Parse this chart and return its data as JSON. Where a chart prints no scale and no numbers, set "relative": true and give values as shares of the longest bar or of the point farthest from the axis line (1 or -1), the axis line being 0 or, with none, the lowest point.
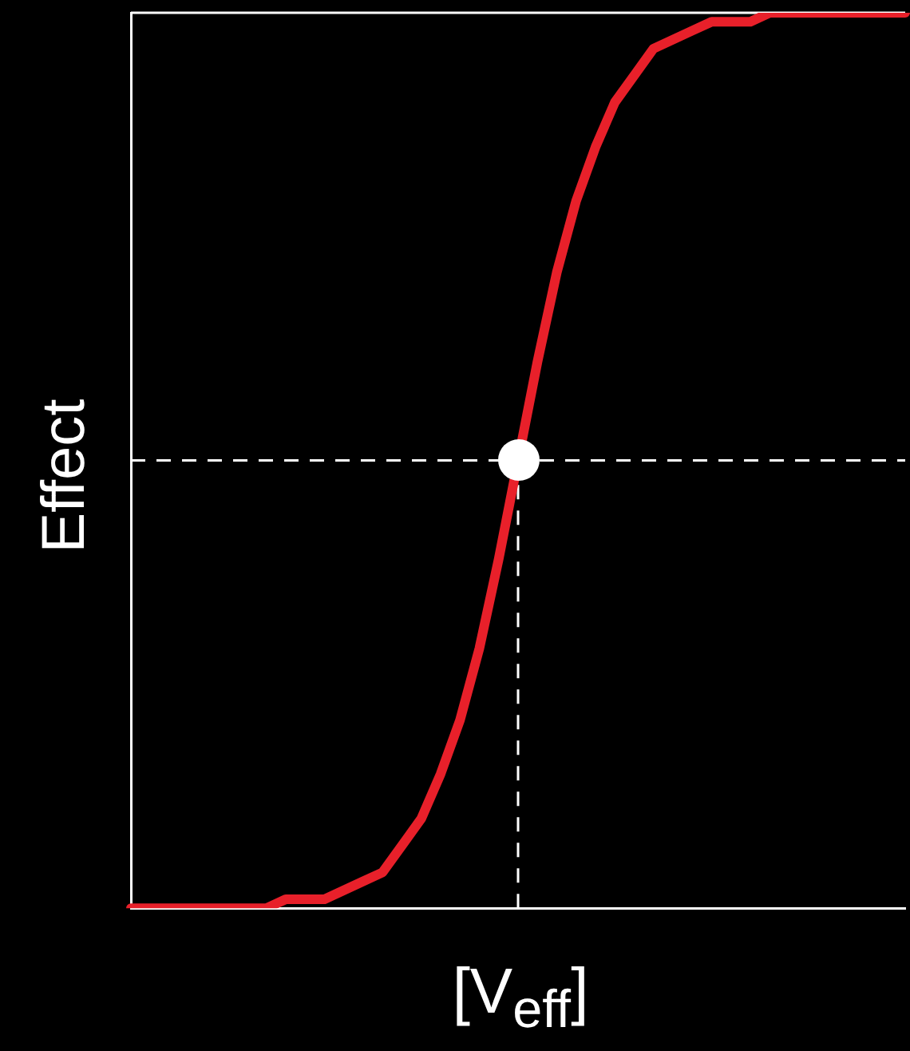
{
  "chart_data": {
    "type": "line",
    "xlabel": "[V$_{eff}$]",
    "ylabel": "Effect",
    "relative": true,
    "categories": [
      null,
      null,
      null,
      null,
      null,
      null,
      null,
      null,
      null,
      null,
      null,
      null,
      null,
      null,
      null,
      null,
      null,
      null,
      null,
      null,
      null,
      null,
      null,
      null,
      null,
      null,
      null,
      null,
      null,
      null,
      null,
      null,
      null,
      null,
      null,
      null,
      null,
      null,
      null,
      null,
      null
    ],
    "series": [
      {
        "color": "#e8202a",
        "values": [
          0,
          0,
          0,
          0,
          0,
          0,
          0,
          0,
          0.01,
          0.01,
          0.01,
          0.02,
          0.03,
          0.04,
          0.07,
          0.1,
          0.15,
          0.21,
          0.29,
          0.39,
          0.5,
          0.61,
          0.71,
          0.79,
          0.85,
          0.9,
          0.93,
          0.96,
          0.97,
          0.98,
          0.99,
          0.99,
          0.99,
          1,
          1,
          1,
          1,
          1,
          1,
          1,
          1
        ]
      }
    ],
    "ref_lines": [
      {
        "axis": "y",
        "value": 0.5,
        "color": "#ffffff",
        "line_style": "dashed"
      }
    ]
  }
}
